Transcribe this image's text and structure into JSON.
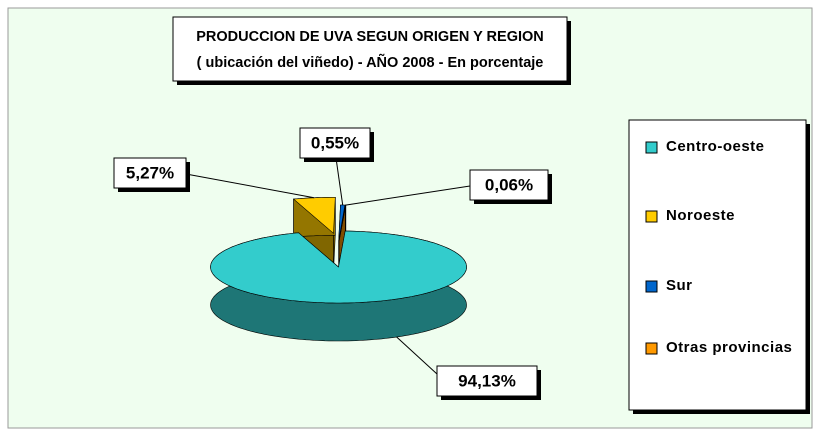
{
  "chart_data": {
    "type": "pie3d",
    "title": "PRODUCCION DE UVA SEGUN ORIGEN Y  REGION",
    "subtitle": "( ubicación del viñedo) -  AÑO 2008 - En porcentaje",
    "categories": [
      "Centro-oeste",
      "Noroeste",
      "Sur",
      "Otras provincias"
    ],
    "values": [
      94.13,
      5.27,
      0.55,
      0.06
    ],
    "value_labels": [
      "94,13%",
      "5,27%",
      "0,55%",
      "0,06%"
    ],
    "colors": [
      "#33cccc",
      "#ffcc00",
      "#0066cc",
      "#ff9900"
    ],
    "legend": "right"
  }
}
